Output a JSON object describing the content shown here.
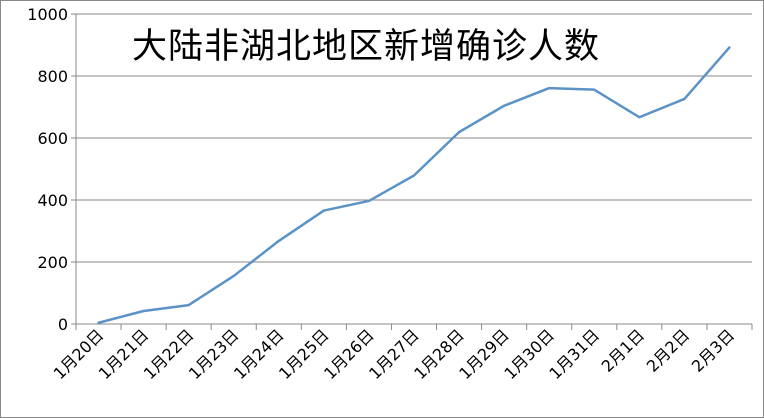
{
  "chart_data": {
    "type": "line",
    "title": "大陆非湖北地区新增确诊人数",
    "xlabel": "",
    "ylabel": "",
    "categories": [
      "1月20日",
      "1月21日",
      "1月22日",
      "1月23日",
      "1月24日",
      "1月25日",
      "1月26日",
      "1月27日",
      "1月28日",
      "1月29日",
      "1月30日",
      "1月31日",
      "2月1日",
      "2月2日",
      "2月3日"
    ],
    "series": [
      {
        "values": [
          4,
          42,
          61,
          155,
          268,
          366,
          397,
          479,
          619,
          704,
          761,
          756,
          667,
          726,
          892
        ],
        "color": "#5b93c7"
      }
    ],
    "ylim": [
      0,
      1000
    ],
    "yticks": [
      0,
      200,
      400,
      600,
      800,
      1000
    ],
    "grid": true,
    "legend": "none"
  }
}
